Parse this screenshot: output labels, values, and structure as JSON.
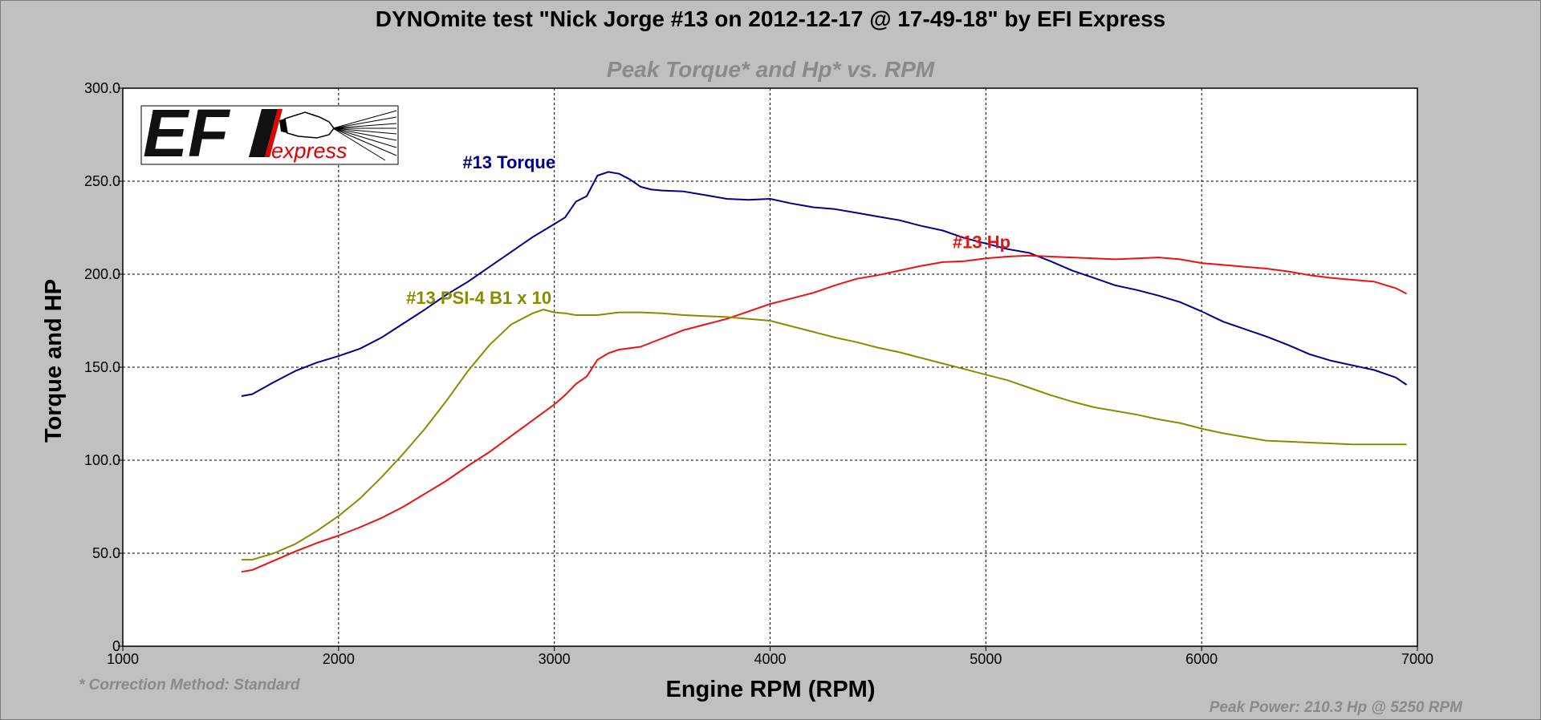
{
  "chart_data": {
    "type": "line",
    "title": "DYNOmite test \"Nick Jorge #13 on 2012-12-17 @ 17-49-18\" by EFI Express",
    "subtitle": "Peak Torque* and Hp* vs. RPM",
    "xlabel": "Engine RPM (RPM)",
    "ylabel": "Torque and HP",
    "xlim": [
      1000,
      7000
    ],
    "ylim": [
      0,
      300
    ],
    "x_ticks": [
      "1000",
      "2000",
      "3000",
      "4000",
      "5000",
      "6000",
      "7000"
    ],
    "y_ticks": [
      "0",
      "50.0",
      "100.0",
      "150.0",
      "200.0",
      "250.0",
      "300.0"
    ],
    "grid": true,
    "series": [
      {
        "name": "#13 Torque",
        "color": "#00008b",
        "x": [
          1550,
          1600,
          1700,
          1800,
          1900,
          2000,
          2100,
          2200,
          2300,
          2400,
          2500,
          2600,
          2700,
          2800,
          2900,
          3000,
          3050,
          3100,
          3150,
          3200,
          3250,
          3300,
          3350,
          3400,
          3450,
          3500,
          3600,
          3700,
          3800,
          3900,
          4000,
          4100,
          4200,
          4300,
          4400,
          4500,
          4600,
          4700,
          4800,
          4900,
          5000,
          5100,
          5200,
          5300,
          5400,
          5500,
          5600,
          5700,
          5800,
          5900,
          6000,
          6100,
          6200,
          6300,
          6400,
          6500,
          6600,
          6700,
          6800,
          6900,
          6950
        ],
        "values": [
          134.5,
          135.5,
          142,
          148,
          152.5,
          156,
          160,
          166,
          173.5,
          181,
          189,
          196,
          204,
          212,
          220,
          227,
          230.5,
          239,
          242,
          253,
          255,
          254,
          251,
          247,
          245.5,
          245,
          244.5,
          242.5,
          240.5,
          240,
          240.5,
          238,
          236,
          235,
          233,
          231,
          229,
          226,
          223.5,
          219.5,
          216.5,
          213.5,
          211.5,
          207,
          202,
          198,
          194,
          191.5,
          188.5,
          185,
          180,
          174.5,
          170.5,
          166.5,
          162,
          157,
          153.5,
          151,
          148.5,
          144.5,
          140.5
        ]
      },
      {
        "name": "#13 Hp",
        "color": "#ee1111",
        "x": [
          1550,
          1600,
          1700,
          1800,
          1900,
          2000,
          2100,
          2200,
          2300,
          2400,
          2500,
          2600,
          2700,
          2800,
          2900,
          3000,
          3050,
          3100,
          3150,
          3200,
          3250,
          3300,
          3400,
          3500,
          3600,
          3700,
          3800,
          3900,
          4000,
          4100,
          4200,
          4300,
          4400,
          4500,
          4600,
          4700,
          4800,
          4900,
          5000,
          5100,
          5200,
          5300,
          5400,
          5500,
          5600,
          5700,
          5800,
          5900,
          6000,
          6100,
          6200,
          6300,
          6400,
          6500,
          6600,
          6700,
          6800,
          6900,
          6950
        ],
        "values": [
          40,
          41,
          46,
          51,
          55.5,
          59.5,
          64,
          69,
          75,
          82,
          89,
          97,
          104.5,
          113,
          121.5,
          130,
          135,
          141,
          145,
          154,
          157.5,
          159.5,
          161,
          165.5,
          170,
          173,
          176,
          180,
          184,
          187,
          190,
          194,
          197.5,
          199.5,
          202,
          204.5,
          206.5,
          207,
          208.5,
          209.5,
          210,
          209.5,
          209,
          208.5,
          208,
          208.5,
          209,
          208,
          206,
          205,
          204,
          203,
          201.5,
          199.5,
          198,
          197,
          196,
          192.5,
          189.5
        ]
      },
      {
        "name": "#13 PSI-4 B1 x 10",
        "color": "#8b8b00",
        "x": [
          1550,
          1600,
          1700,
          1800,
          1900,
          2000,
          2100,
          2200,
          2300,
          2400,
          2500,
          2600,
          2700,
          2800,
          2900,
          2950,
          3000,
          3050,
          3100,
          3200,
          3300,
          3400,
          3500,
          3600,
          3700,
          3800,
          3900,
          4000,
          4100,
          4200,
          4300,
          4400,
          4500,
          4600,
          4700,
          4800,
          4900,
          5000,
          5100,
          5200,
          5300,
          5400,
          5500,
          5600,
          5700,
          5800,
          5900,
          6000,
          6100,
          6200,
          6300,
          6400,
          6500,
          6600,
          6700,
          6800,
          6900,
          6950
        ],
        "values": [
          46.5,
          46.5,
          50,
          55,
          62,
          70,
          79.5,
          91,
          103.5,
          117,
          132,
          148,
          162,
          173,
          179,
          181,
          179.5,
          179,
          178,
          178,
          179.5,
          179.5,
          179,
          178,
          177.5,
          177,
          176,
          175,
          172,
          169,
          166,
          163.5,
          160.5,
          158,
          155,
          152,
          149,
          146,
          143,
          139,
          135,
          131.5,
          128.5,
          126.5,
          124.5,
          122,
          120,
          117,
          114.5,
          112.5,
          110.5,
          110,
          109.5,
          109,
          108.5,
          108.5,
          108.5,
          108.5
        ]
      }
    ],
    "series_labels_positions_data": [
      {
        "text": "#13 Torque",
        "x": 2790,
        "y": 257
      },
      {
        "text": "#13 Hp",
        "x": 4980,
        "y": 214
      },
      {
        "text": "#13 PSI-4 B1 x 10",
        "x": 2650,
        "y": 184
      }
    ]
  },
  "footnote_left": "* Correction Method: Standard",
  "footnote_right": "Peak Power: 210.3 Hp @ 5250 RPM",
  "logo": {
    "main": "EFI",
    "sub": "express"
  }
}
